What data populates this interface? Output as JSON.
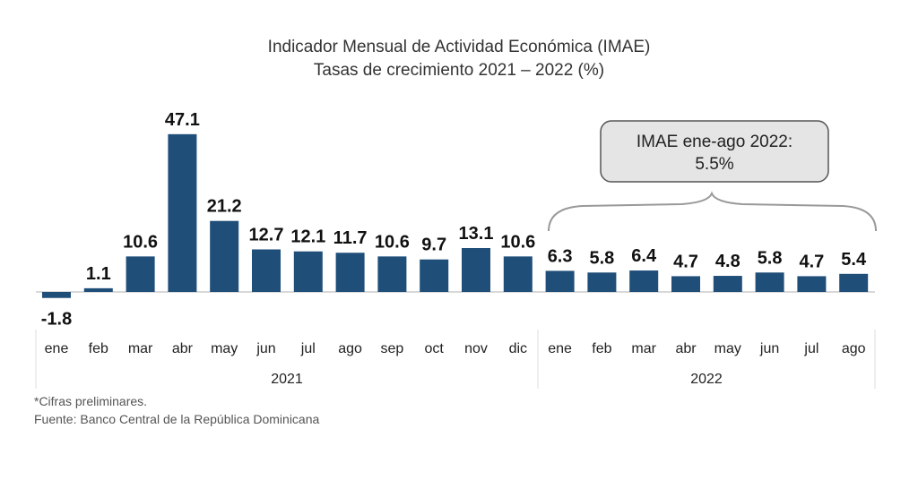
{
  "chart_data": {
    "type": "bar",
    "title": "Indicador Mensual de Actividad Económica (IMAE)",
    "subtitle": "Tasas de crecimiento 2021 – 2022 (%)",
    "categories": [
      "ene",
      "feb",
      "mar",
      "abr",
      "may",
      "jun",
      "jul",
      "ago",
      "sep",
      "oct",
      "nov",
      "dic",
      "ene",
      "feb",
      "mar",
      "abr",
      "may",
      "jun",
      "jul",
      "ago"
    ],
    "groups": [
      {
        "label": "2021",
        "count": 12
      },
      {
        "label": "2022",
        "count": 8
      }
    ],
    "values": [
      -1.8,
      1.1,
      10.6,
      47.1,
      21.2,
      12.7,
      12.1,
      11.7,
      10.6,
      9.7,
      13.1,
      10.6,
      6.3,
      5.8,
      6.4,
      4.7,
      4.8,
      5.8,
      4.7,
      5.4
    ],
    "value_labels": [
      "-1.8",
      "1.1",
      "10.6",
      "47.1",
      "21.2",
      "12.7",
      "12.1",
      "11.7",
      "10.6",
      "9.7",
      "13.1",
      "10.6",
      "6.3",
      "5.8",
      "6.4",
      "4.7",
      "4.8",
      "5.8",
      "4.7",
      "5.4"
    ],
    "annotation": {
      "line1": "IMAE ene-ago 2022:",
      "line2": "5.5%"
    },
    "grid": false,
    "bar_color": "#1f4e79"
  },
  "footnotes": {
    "note": "*Cifras preliminares.",
    "source": "Fuente: Banco Central de la República Dominicana"
  }
}
